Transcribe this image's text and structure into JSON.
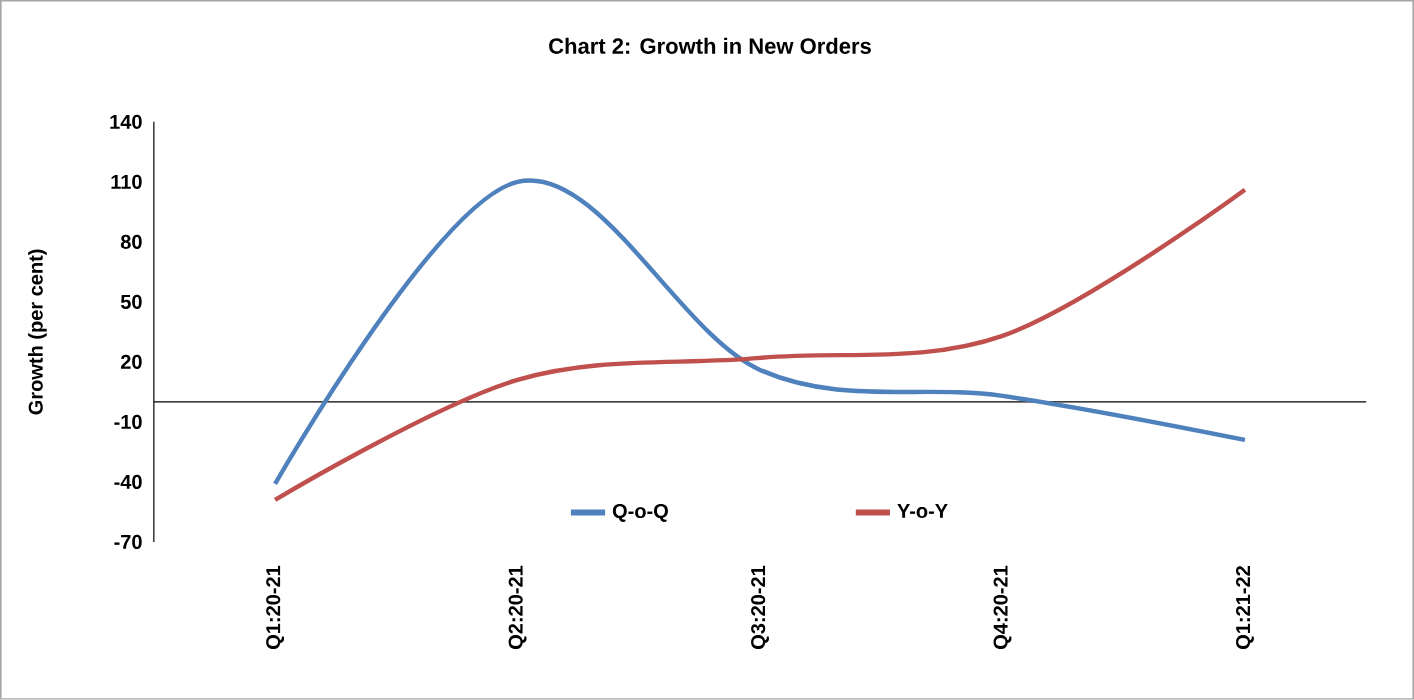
{
  "chart_data": {
    "type": "line",
    "title": "Chart 2: Growth in New Orders",
    "ylabel": "Growth (per cent)",
    "categories": [
      "Q1:20-21",
      "Q2:20-21",
      "Q3:20-21",
      "Q4:20-21",
      "Q1:21-22"
    ],
    "series": [
      {
        "name": "Q-o-Q",
        "color": "#4f81bd",
        "values": [
          -41,
          110,
          16,
          3,
          -19
        ]
      },
      {
        "name": "Y-o-Y",
        "color": "#c0504d",
        "values": [
          -49,
          11,
          22,
          33,
          106
        ]
      }
    ],
    "ylim": [
      -70,
      140
    ],
    "yticks": [
      -70,
      -40,
      -10,
      20,
      50,
      80,
      110,
      140
    ],
    "legend": "bottom",
    "grid": false,
    "marker": "none",
    "line_style": "solid"
  }
}
